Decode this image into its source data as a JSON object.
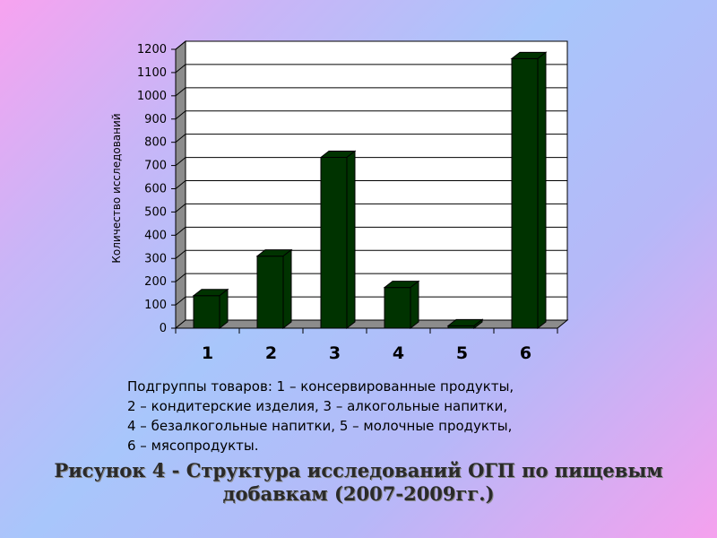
{
  "chart_data": {
    "type": "bar",
    "categories": [
      "1",
      "2",
      "3",
      "4",
      "5",
      "6"
    ],
    "values": [
      140,
      310,
      735,
      175,
      10,
      1160
    ],
    "xlabel": "",
    "ylabel": "Количество исследований",
    "ylim": [
      0,
      1200
    ],
    "yticks": [
      0,
      100,
      200,
      300,
      400,
      500,
      600,
      700,
      800,
      900,
      1000,
      1100,
      1200
    ],
    "grid": true,
    "bar_color": "#003300"
  },
  "caption": {
    "lines": [
      "Подгруппы товаров: 1 – консервированные продукты,",
      "2 – кондитерские изделия, 3 – алкогольные напитки,",
      "4 – безалкогольные напитки, 5 – молочные продукты,",
      "6 – мясопродукты."
    ]
  },
  "figure_title": {
    "line1": "Рисунок 4 - Структура исследований ОГП по пищевым",
    "line2": "добавкам (2007-2009гг.)"
  }
}
